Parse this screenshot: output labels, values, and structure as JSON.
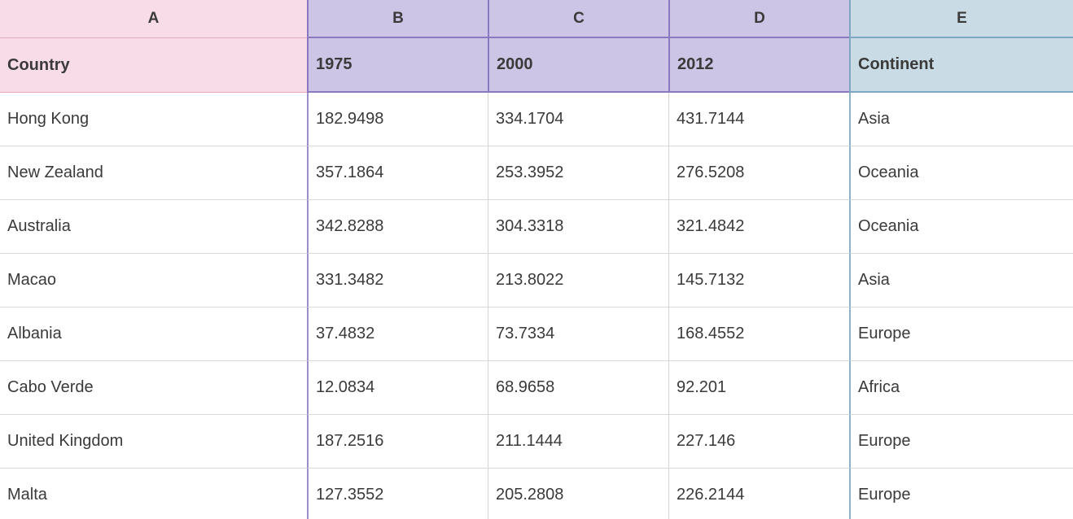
{
  "table": {
    "column_letters": [
      "A",
      "B",
      "C",
      "D",
      "E"
    ],
    "header": [
      "Country",
      "1975",
      "2000",
      "2012",
      "Continent"
    ],
    "rows": [
      [
        "Hong Kong",
        "182.9498",
        "334.1704",
        "431.7144",
        "Asia"
      ],
      [
        "New Zealand",
        "357.1864",
        "253.3952",
        "276.5208",
        "Oceania"
      ],
      [
        "Australia",
        "342.8288",
        "304.3318",
        "321.4842",
        "Oceania"
      ],
      [
        "Macao",
        "331.3482",
        "213.8022",
        "145.7132",
        "Asia"
      ],
      [
        "Albania",
        "37.4832",
        "73.7334",
        "168.4552",
        "Europe"
      ],
      [
        "Cabo Verde",
        "12.0834",
        "68.9658",
        "92.201",
        "Africa"
      ],
      [
        "United Kingdom",
        "187.2516",
        "211.1444",
        "227.146",
        "Europe"
      ],
      [
        "Malta",
        "127.3552",
        "205.2808",
        "226.2144",
        "Europe"
      ]
    ]
  },
  "colors": {
    "pink_fill": "#f8dce8",
    "pink_border": "#e9a8c1",
    "purple_fill": "#cdc5e5",
    "purple_border": "#8a79bf",
    "purple_mid": "#9d8dc9",
    "blue_fill": "#c9dbe4",
    "blue_border": "#7ea8c1",
    "blue_mid": "#8db1c8",
    "grid": "#d9d9d9",
    "grid2": "#d4d4d4",
    "text": "#3a3a3a"
  }
}
